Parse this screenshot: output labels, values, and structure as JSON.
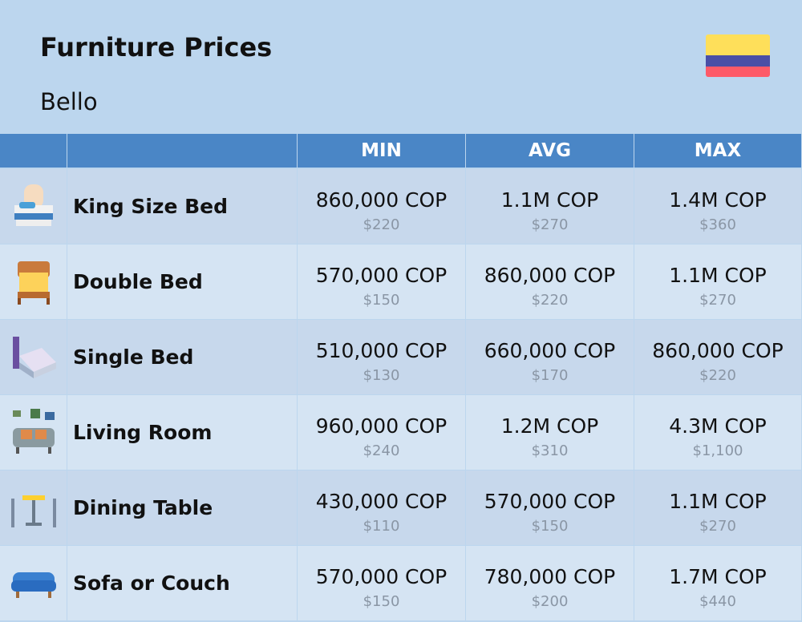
{
  "header": {
    "title": "Furniture Prices",
    "subtitle": "Bello"
  },
  "table": {
    "columns": [
      "MIN",
      "AVG",
      "MAX"
    ],
    "rows": [
      {
        "name": "King Size Bed",
        "cells": [
          [
            "860,000 COP",
            "$220"
          ],
          [
            "1.1M COP",
            "$270"
          ],
          [
            "1.4M COP",
            "$360"
          ]
        ]
      },
      {
        "name": "Double Bed",
        "cells": [
          [
            "570,000 COP",
            "$150"
          ],
          [
            "860,000 COP",
            "$220"
          ],
          [
            "1.1M COP",
            "$270"
          ]
        ]
      },
      {
        "name": "Single Bed",
        "cells": [
          [
            "510,000 COP",
            "$130"
          ],
          [
            "660,000 COP",
            "$170"
          ],
          [
            "860,000 COP",
            "$220"
          ]
        ]
      },
      {
        "name": "Living Room",
        "cells": [
          [
            "960,000 COP",
            "$240"
          ],
          [
            "1.2M COP",
            "$310"
          ],
          [
            "4.3M COP",
            "$1,100"
          ]
        ]
      },
      {
        "name": "Dining Table",
        "cells": [
          [
            "430,000 COP",
            "$110"
          ],
          [
            "570,000 COP",
            "$150"
          ],
          [
            "1.1M COP",
            "$270"
          ]
        ]
      },
      {
        "name": "Sofa or Couch",
        "cells": [
          [
            "570,000 COP",
            "$150"
          ],
          [
            "780,000 COP",
            "$200"
          ],
          [
            "1.7M COP",
            "$440"
          ]
        ]
      }
    ]
  }
}
